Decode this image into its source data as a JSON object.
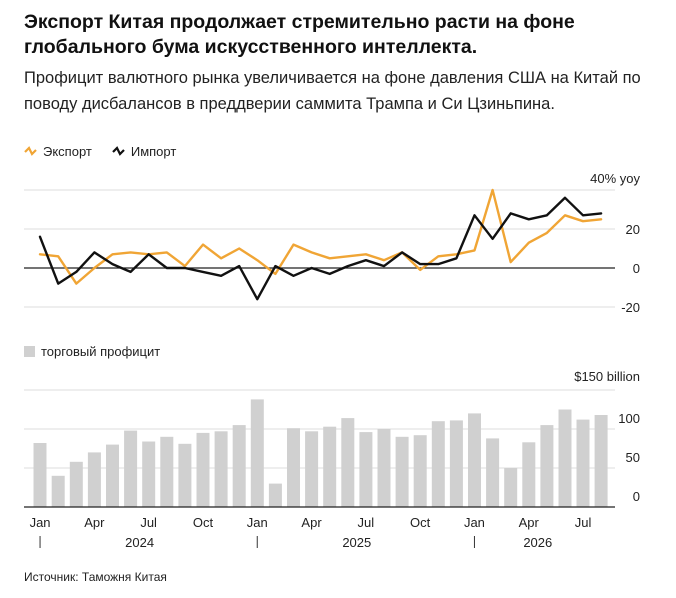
{
  "header": {
    "title": "Экспорт Китая продолжает стремительно расти на фоне глобального бума искусственного интеллекта.",
    "subtitle": "Профицит валютного рынка увеличивается на фоне давления США на Китай по поводу дисбалансов в преддверии саммита Трампа и Си Цзиньпина."
  },
  "legend": {
    "export": "Экспорт",
    "import": "Импорт",
    "surplus": "торговый профицит"
  },
  "colors": {
    "export": "#f0a535",
    "import": "#111111",
    "surplus": "#d0d0d0",
    "grid": "#dcdcdc"
  },
  "source": "Источник: Таможня Китая",
  "chart_data": [
    {
      "type": "line",
      "x": [
        "2024-01",
        "2024-02",
        "2024-03",
        "2024-04",
        "2024-05",
        "2024-06",
        "2024-07",
        "2024-08",
        "2024-09",
        "2024-10",
        "2024-11",
        "2024-12",
        "2025-01",
        "2025-02",
        "2025-03",
        "2025-04",
        "2025-05",
        "2025-06",
        "2025-07",
        "2025-08",
        "2025-09",
        "2025-10",
        "2025-11",
        "2025-12",
        "2026-01",
        "2026-02",
        "2026-03",
        "2026-04",
        "2026-05",
        "2026-06",
        "2026-07",
        "2026-08"
      ],
      "series": [
        {
          "name": "Экспорт",
          "color": "#f0a535",
          "values": [
            7,
            6,
            -8,
            0,
            7,
            8,
            7,
            8,
            1,
            12,
            5,
            10,
            4,
            -3,
            12,
            8,
            5,
            6,
            7,
            4,
            8,
            -1,
            6,
            7,
            9,
            40,
            3,
            13,
            18,
            27,
            24,
            25
          ]
        },
        {
          "name": "Импорт",
          "color": "#111111",
          "values": [
            16,
            -8,
            -2,
            8,
            2,
            -2,
            7,
            0,
            0,
            -2,
            -4,
            1,
            -16,
            1,
            -4,
            0,
            -3,
            1,
            4,
            1,
            8,
            2,
            2,
            5,
            27,
            15,
            28,
            25,
            27,
            36,
            27,
            28
          ]
        }
      ],
      "ylabel": "40% yoy",
      "yticks": [
        20,
        0,
        -20
      ],
      "ylim": [
        -20,
        40
      ],
      "grid": true
    },
    {
      "type": "bar",
      "x": [
        "2024-01",
        "2024-02",
        "2024-03",
        "2024-04",
        "2024-05",
        "2024-06",
        "2024-07",
        "2024-08",
        "2024-09",
        "2024-10",
        "2024-11",
        "2024-12",
        "2025-01",
        "2025-02",
        "2025-03",
        "2025-04",
        "2025-05",
        "2025-06",
        "2025-07",
        "2025-08",
        "2025-09",
        "2025-10",
        "2025-11",
        "2025-12",
        "2026-01",
        "2026-02",
        "2026-03",
        "2026-04",
        "2026-05",
        "2026-06",
        "2026-07",
        "2026-08"
      ],
      "series": [
        {
          "name": "торговый профицит",
          "values": [
            82,
            40,
            58,
            70,
            80,
            98,
            84,
            90,
            81,
            95,
            97,
            105,
            138,
            30,
            101,
            97,
            103,
            114,
            96,
            100,
            90,
            92,
            110,
            111,
            120,
            88,
            50,
            83,
            105,
            125,
            112,
            118
          ]
        }
      ],
      "ylabel": "$150 billion",
      "yticks": [
        100,
        50,
        0
      ],
      "ylim": [
        0,
        150
      ],
      "grid": true
    }
  ],
  "xaxis": {
    "month_labels": [
      "Jan",
      "Apr",
      "Jul",
      "Oct",
      "Jan",
      "Apr",
      "Jul",
      "Oct",
      "Jan",
      "Apr",
      "Jul"
    ],
    "year_labels": [
      "2024",
      "2025",
      "2026"
    ]
  }
}
